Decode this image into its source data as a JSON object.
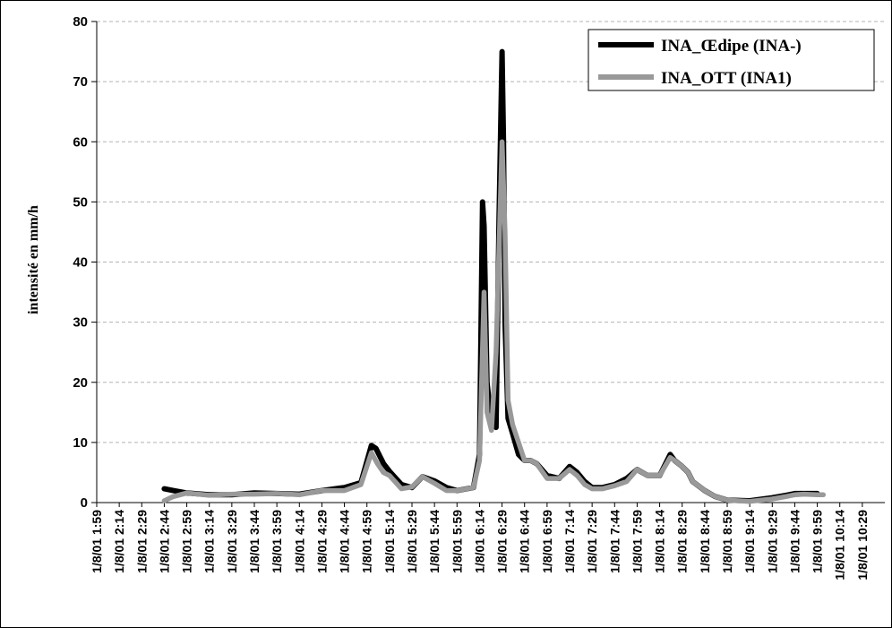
{
  "chart_data": {
    "type": "line",
    "title": "",
    "xlabel": "",
    "ylabel": "intensité en mm/h",
    "ylim": [
      0,
      80
    ],
    "yticks": [
      "0",
      "10",
      "20",
      "30",
      "40",
      "50",
      "60",
      "70",
      "80"
    ],
    "grid": "horizontal dashed",
    "legend_position": "top-right",
    "x_tick_labels": [
      "1/8/01 1:59",
      "1/8/01 2:14",
      "1/8/01 2:29",
      "1/8/01 2:44",
      "1/8/01 2:59",
      "1/8/01 3:14",
      "1/8/01 3:29",
      "1/8/01 3:44",
      "1/8/01 3:59",
      "1/8/01 4:14",
      "1/8/01 4:29",
      "1/8/01 4:44",
      "1/8/01 4:59",
      "1/8/01 5:14",
      "1/8/01 5:29",
      "1/8/01 5:44",
      "1/8/01 5:59",
      "1/8/01 6:14",
      "1/8/01 6:29",
      "1/8/01 6:44",
      "1/8/01 6:59",
      "1/8/01 7:14",
      "1/8/01 7:29",
      "1/8/01 7:44",
      "1/8/01 7:59",
      "1/8/01 8:14",
      "1/8/01 8:29",
      "1/8/01 8:44",
      "1/8/01 8:59",
      "1/8/01 9:14",
      "1/8/01 9:29",
      "1/8/01 9:44",
      "1/8/01 9:59",
      "1/8/01 10:14",
      "1/8/01 10:29"
    ],
    "series": [
      {
        "name": "INA_Œdipe (INA-)",
        "color": "#000000",
        "x": [
          "1/8/01 2:44",
          "1/8/01 2:50",
          "1/8/01 2:59",
          "1/8/01 3:14",
          "1/8/01 3:29",
          "1/8/01 3:44",
          "1/8/01 3:59",
          "1/8/01 4:14",
          "1/8/01 4:29",
          "1/8/01 4:44",
          "1/8/01 4:55",
          "1/8/01 5:02",
          "1/8/01 5:05",
          "1/8/01 5:10",
          "1/8/01 5:14",
          "1/8/01 5:22",
          "1/8/01 5:29",
          "1/8/01 5:36",
          "1/8/01 5:44",
          "1/8/01 5:52",
          "1/8/01 5:59",
          "1/8/01 6:10",
          "1/8/01 6:14",
          "1/8/01 6:16",
          "1/8/01 6:17",
          "1/8/01 6:19",
          "1/8/01 6:22",
          "1/8/01 6:25",
          "1/8/01 6:27",
          "1/8/01 6:29",
          "1/8/01 6:30",
          "1/8/01 6:31",
          "1/8/01 6:33",
          "1/8/01 6:36",
          "1/8/01 6:40",
          "1/8/01 6:44",
          "1/8/01 6:48",
          "1/8/01 6:52",
          "1/8/01 6:59",
          "1/8/01 7:07",
          "1/8/01 7:14",
          "1/8/01 7:19",
          "1/8/01 7:24",
          "1/8/01 7:29",
          "1/8/01 7:36",
          "1/8/01 7:44",
          "1/8/01 7:52",
          "1/8/01 7:59",
          "1/8/01 8:06",
          "1/8/01 8:14",
          "1/8/01 8:21",
          "1/8/01 8:24",
          "1/8/01 8:29",
          "1/8/01 8:33",
          "1/8/01 8:36",
          "1/8/01 8:44",
          "1/8/01 8:51",
          "1/8/01 8:59",
          "1/8/01 9:14",
          "1/8/01 9:29",
          "1/8/01 9:38",
          "1/8/01 9:44",
          "1/8/01 9:50",
          "1/8/01 9:59"
        ],
        "y": [
          2.3,
          2.0,
          1.6,
          1.3,
          1.3,
          1.6,
          1.5,
          1.4,
          2.0,
          2.5,
          3.3,
          9.5,
          9.0,
          6.5,
          5.2,
          3.0,
          2.5,
          4.3,
          3.6,
          2.5,
          2.0,
          2.5,
          8.0,
          50.0,
          46.0,
          20.0,
          13.0,
          12.5,
          47.0,
          75.0,
          60.0,
          30.0,
          14.0,
          11.5,
          8.0,
          7.0,
          7.0,
          6.5,
          4.5,
          4.0,
          6.0,
          5.0,
          3.5,
          2.5,
          2.5,
          3.0,
          4.0,
          5.5,
          4.5,
          4.5,
          8.0,
          7.0,
          6.0,
          5.0,
          3.5,
          2.0,
          1.0,
          0.4,
          0.3,
          0.8,
          1.2,
          1.5,
          1.5,
          1.5
        ]
      },
      {
        "name": "INA_OTT (INA1)",
        "color": "#999999",
        "x": [
          "1/8/01 2:44",
          "1/8/01 2:50",
          "1/8/01 2:59",
          "1/8/01 3:14",
          "1/8/01 3:29",
          "1/8/01 3:44",
          "1/8/01 3:59",
          "1/8/01 4:14",
          "1/8/01 4:29",
          "1/8/01 4:44",
          "1/8/01 4:55",
          "1/8/01 5:02",
          "1/8/01 5:06",
          "1/8/01 5:10",
          "1/8/01 5:14",
          "1/8/01 5:22",
          "1/8/01 5:29",
          "1/8/01 5:36",
          "1/8/01 5:44",
          "1/8/01 5:52",
          "1/8/01 5:59",
          "1/8/01 6:10",
          "1/8/01 6:14",
          "1/8/01 6:17",
          "1/8/01 6:19",
          "1/8/01 6:22",
          "1/8/01 6:25",
          "1/8/01 6:29",
          "1/8/01 6:31",
          "1/8/01 6:33",
          "1/8/01 6:36",
          "1/8/01 6:40",
          "1/8/01 6:44",
          "1/8/01 6:48",
          "1/8/01 6:52",
          "1/8/01 6:59",
          "1/8/01 7:07",
          "1/8/01 7:14",
          "1/8/01 7:19",
          "1/8/01 7:24",
          "1/8/01 7:29",
          "1/8/01 7:36",
          "1/8/01 7:44",
          "1/8/01 7:52",
          "1/8/01 7:59",
          "1/8/01 8:06",
          "1/8/01 8:14",
          "1/8/01 8:21",
          "1/8/01 8:24",
          "1/8/01 8:29",
          "1/8/01 8:33",
          "1/8/01 8:36",
          "1/8/01 8:44",
          "1/8/01 8:51",
          "1/8/01 8:59",
          "1/8/01 9:14",
          "1/8/01 9:29",
          "1/8/01 9:38",
          "1/8/01 9:44",
          "1/8/01 9:50",
          "1/8/01 9:59",
          "1/8/01 10:03"
        ],
        "y": [
          0.3,
          1.0,
          1.6,
          1.2,
          1.4,
          1.4,
          1.5,
          1.3,
          2.0,
          2.0,
          3.0,
          8.3,
          6.5,
          5.0,
          4.5,
          2.3,
          2.6,
          4.3,
          3.2,
          2.0,
          2.0,
          2.5,
          7.0,
          35.0,
          15.0,
          12.0,
          25.0,
          60.0,
          45.0,
          17.0,
          13.0,
          10.0,
          7.0,
          7.0,
          6.5,
          4.0,
          4.0,
          5.5,
          4.5,
          3.0,
          2.3,
          2.3,
          2.8,
          3.5,
          5.5,
          4.5,
          4.5,
          7.5,
          7.0,
          6.0,
          5.0,
          3.5,
          2.0,
          1.0,
          0.4,
          0.2,
          0.6,
          1.0,
          1.3,
          1.4,
          1.3,
          1.3
        ]
      }
    ]
  }
}
